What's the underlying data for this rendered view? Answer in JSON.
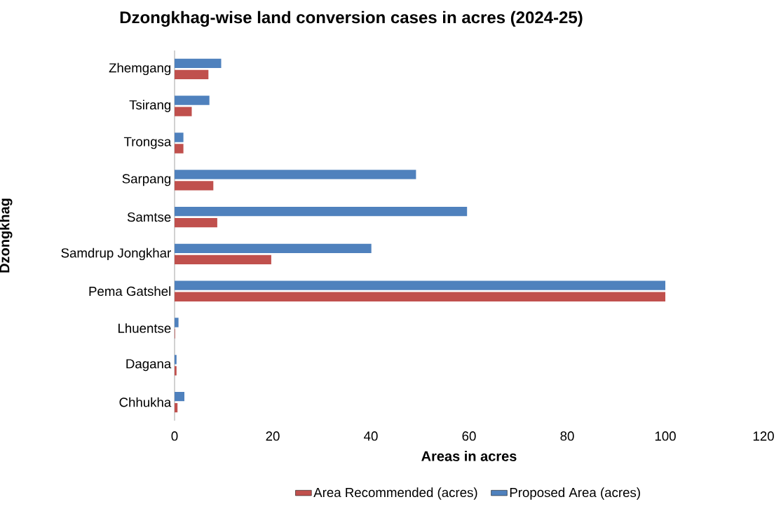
{
  "chart_data": {
    "type": "bar",
    "orientation": "horizontal",
    "title": "Dzongkhag-wise land conversion  cases in acres (2024-25)",
    "xlabel": "Areas in acres",
    "ylabel": "Dzongkhag",
    "categories": [
      "Zhemgang",
      "Tsirang",
      "Trongsa",
      "Sarpang",
      "Samtse",
      "Samdrup Jongkhar",
      "Pema Gatshel",
      "Lhuentse",
      "Dagana",
      "Chhukha"
    ],
    "series": [
      {
        "name": "Area Recommended (acres)",
        "color": "#c0504d",
        "values": [
          6.9,
          3.5,
          1.8,
          7.9,
          8.7,
          19.7,
          100,
          0.1,
          0.4,
          0.6
        ]
      },
      {
        "name": "Proposed Area (acres)",
        "color": "#4f81bd",
        "values": [
          9.5,
          7.1,
          1.8,
          49.2,
          59.6,
          40.1,
          100,
          0.8,
          0.4,
          2.0
        ]
      }
    ],
    "xlim": [
      0,
      120
    ],
    "xticks": [
      0,
      20,
      40,
      60,
      80,
      100,
      120
    ],
    "grid": false,
    "legend": "bottom"
  }
}
